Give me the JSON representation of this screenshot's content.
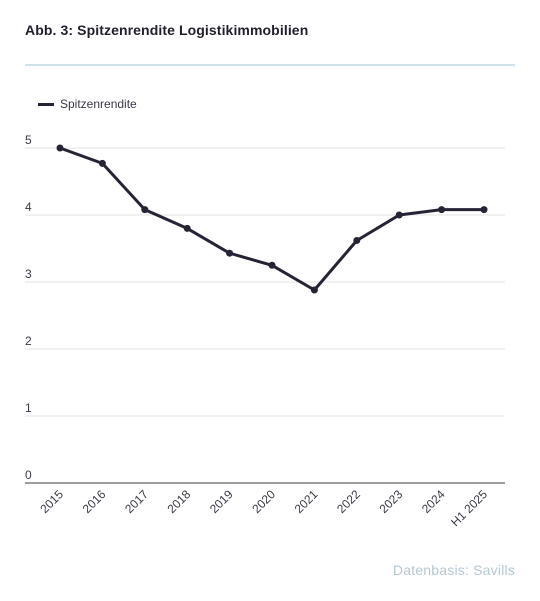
{
  "header": {
    "title": "Abb. 3: Spitzenrendite Logistikimmobilien"
  },
  "footer": {
    "source": "Datenbasis: Savills"
  },
  "colors": {
    "line": "#252435",
    "grid": "#e3e3e6",
    "axis": "#3a3a45",
    "text": "#3a3a48",
    "source": "#b4c7d6",
    "divider": "#cfe2ea"
  },
  "chart_data": {
    "type": "line",
    "categories": [
      "2015",
      "2016",
      "2017",
      "2018",
      "2019",
      "2020",
      "2021",
      "2022",
      "2023",
      "2024",
      "H1 2025"
    ],
    "series": [
      {
        "name": "Spitzenrendite",
        "values": [
          5.0,
          4.77,
          4.08,
          3.8,
          3.43,
          3.25,
          2.88,
          3.62,
          4.0,
          4.08,
          4.08
        ]
      }
    ],
    "ylim": [
      0,
      5
    ],
    "yticks": [
      0,
      1,
      2,
      3,
      4,
      5
    ],
    "grid": true,
    "legend": "top-left"
  }
}
